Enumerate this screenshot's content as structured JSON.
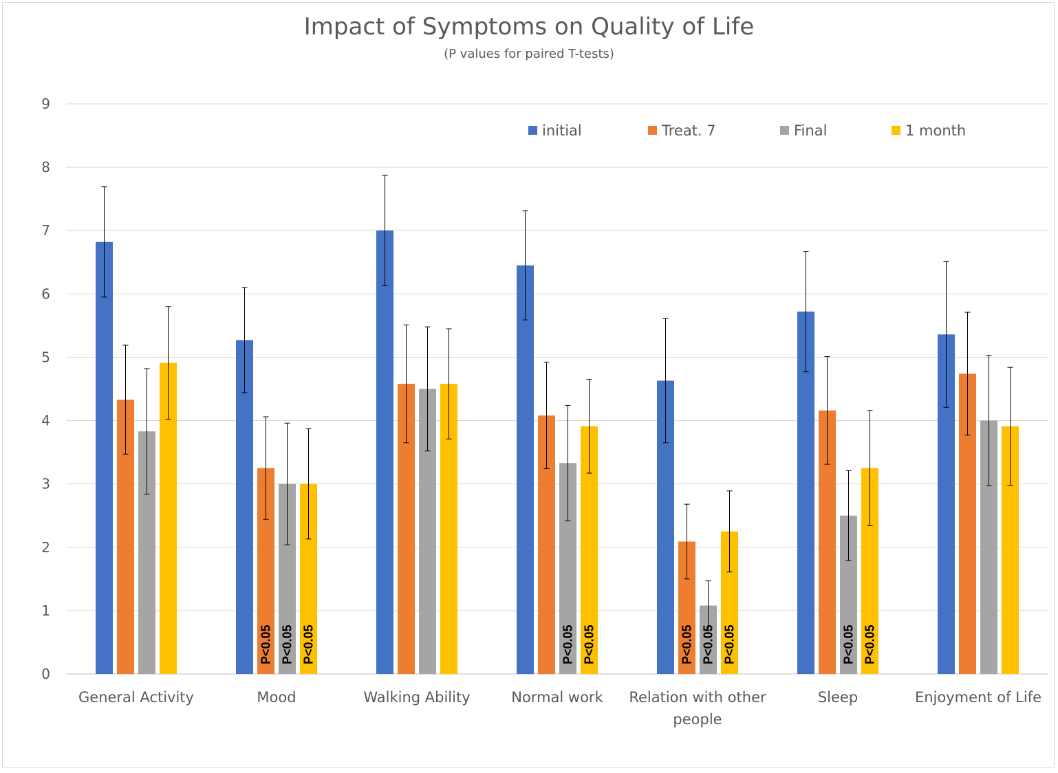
{
  "chart_data": {
    "type": "bar",
    "title": "Impact of Symptoms on Quality of Life",
    "subtitle": "(P values for paired T-tests)",
    "ylim": [
      0,
      9
    ],
    "yticks": [
      0,
      1,
      2,
      3,
      4,
      5,
      6,
      7,
      8,
      9
    ],
    "grid": true,
    "legend_position": "top-right",
    "categories": [
      [
        "General Activity"
      ],
      [
        "Mood"
      ],
      [
        "Walking Ability"
      ],
      [
        "Normal work"
      ],
      [
        "Relation with other",
        "people"
      ],
      [
        "Sleep"
      ],
      [
        "Enjoyment of Life"
      ]
    ],
    "series": [
      {
        "name": "initial",
        "color": "#4472C4",
        "values": [
          6.82,
          5.27,
          7.0,
          6.45,
          4.63,
          5.72,
          5.36
        ],
        "error": [
          0.87,
          0.83,
          0.87,
          0.86,
          0.98,
          0.95,
          1.15
        ],
        "annotations": [
          "",
          "",
          "",
          "",
          "",
          "",
          ""
        ]
      },
      {
        "name": "Treat. 7",
        "color": "#ED7D31",
        "values": [
          4.33,
          3.25,
          4.58,
          4.08,
          2.09,
          4.16,
          4.74
        ],
        "error": [
          0.86,
          0.81,
          0.93,
          0.84,
          0.59,
          0.85,
          0.97
        ],
        "annotations": [
          "",
          "P<0.05",
          "",
          "",
          "P<0.05",
          "",
          ""
        ]
      },
      {
        "name": "Final",
        "color": "#A5A5A5",
        "values": [
          3.83,
          3.0,
          4.5,
          3.33,
          1.08,
          2.5,
          4.0
        ],
        "error": [
          0.99,
          0.96,
          0.98,
          0.91,
          0.39,
          0.71,
          1.03
        ],
        "annotations": [
          "",
          "P<0.05",
          "",
          "P<0.05",
          "P<0.05",
          "P<0.05",
          ""
        ]
      },
      {
        "name": "1 month",
        "color": "#FFC000",
        "values": [
          4.91,
          3.0,
          4.58,
          3.91,
          2.25,
          3.25,
          3.91
        ],
        "error": [
          0.89,
          0.87,
          0.87,
          0.74,
          0.64,
          0.91,
          0.93
        ],
        "annotations": [
          "",
          "P<0.05",
          "",
          "P<0.05",
          "P<0.05",
          "P<0.05",
          ""
        ]
      }
    ]
  }
}
